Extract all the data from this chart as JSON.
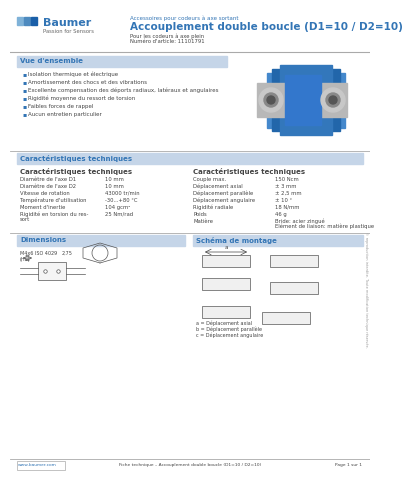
{
  "bg_color": "#ffffff",
  "header_line_color": "#cccccc",
  "baumer_blue": "#3375b5",
  "section_header_bg": "#c5d5e8",
  "section_header_text": "#3375b5",
  "body_text_color": "#444444",
  "bullet_color": "#3375b5",
  "logo_text": "Baumer",
  "logo_sub": "Passion for Sensors",
  "subtitle_small": "Accessoires pour codeurs à axe sortant",
  "title_main": "Accouplement double boucle (D1=10 / D2=10)",
  "title_sub1": "Pour les codeurs à axe plein",
  "title_sub2": "Numéro d'article: 11101791",
  "vue_header": "Vue d'ensemble",
  "vue_items": [
    "Isolation thermique et électrique",
    "Amortissement des chocs et des vibrations",
    "Excellente compensation des déports radiaux, latéraux et angulaires",
    "Rigidité moyenne du ressort de torsion",
    "Faibles forces de rappel",
    "Aucun entretien particulier"
  ],
  "carac_header": "Caractéristiques techniques",
  "carac_left_title": "Caractéristiques techniques",
  "carac_left": [
    [
      "Diamètre de l'axe D1",
      "10 mm"
    ],
    [
      "Diamètre de l'axe D2",
      "10 mm"
    ],
    [
      "Vitesse de rotation",
      "43000 tr/min"
    ],
    [
      "Température d'utilisation",
      "-30...+80 °C"
    ],
    [
      "Moment d'inertie",
      "104 gcm²"
    ],
    [
      "Rigidité en torsion du res-\nsort",
      "25 Nm/rad"
    ]
  ],
  "carac_right_title": "Caractéristiques techniques",
  "carac_right": [
    [
      "Couple max.",
      "150 Ncm"
    ],
    [
      "Déplacement axial",
      "± 3 mm"
    ],
    [
      "Déplacement parallèle",
      "± 2,5 mm"
    ],
    [
      "Déplacement angulaire",
      "± 10 °"
    ],
    [
      "Rigidité radiale",
      "18 N/mm"
    ],
    [
      "Poids",
      "46 g"
    ],
    [
      "Matière",
      "Bride: acier zingué\nElément de liaison: matière plastique"
    ]
  ],
  "dim_header": "Dimensions",
  "dim_note": "M4x6 ISO 4029\n(Hu)",
  "dim_value": "2,75",
  "schema_header": "Schéma de montage",
  "schema_labels": [
    "a = Déplacement axial",
    "b = Déplacement parallèle",
    "c = Déplacement angulaire"
  ],
  "footer_left": "www.baumer.com",
  "footer_center": "Fiche technique – Accouplement double boucle (D1=10 / D2=10)",
  "footer_right": "Page 1 sur 1",
  "right_side_text": "© reproduction interdite. Toute modification technique réservée."
}
